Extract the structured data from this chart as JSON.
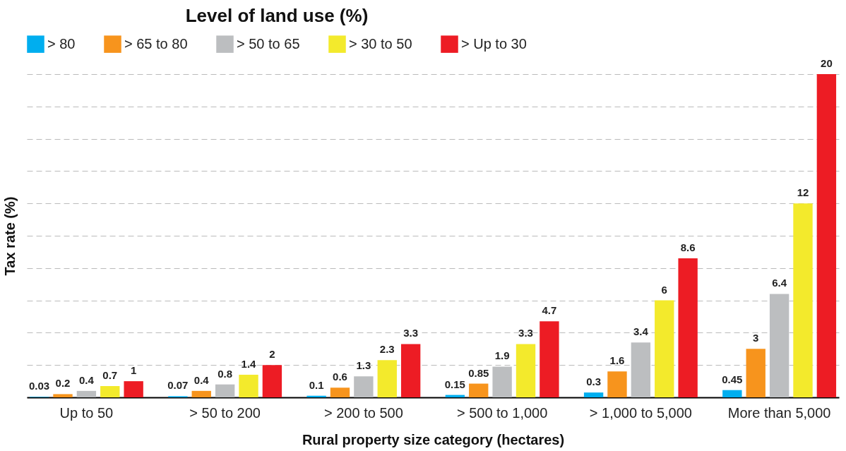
{
  "chart_data": {
    "type": "bar",
    "legend_title": "Level of land use (%)",
    "xlabel": "Rural property size category (hectares)",
    "ylabel": "Tax rate  (%)",
    "categories": [
      "Up to 50",
      "> 50 to 200",
      "> 200 to 500",
      "> 500 to 1,000",
      "> 1,000 to 5,000",
      "More than 5,000"
    ],
    "series": [
      {
        "name": "> 80",
        "color": "#00aeef",
        "values": [
          0.03,
          0.07,
          0.1,
          0.15,
          0.3,
          0.45
        ]
      },
      {
        "name": "> 65 to 80",
        "color": "#f7941d",
        "values": [
          0.2,
          0.4,
          0.6,
          0.85,
          1.6,
          3
        ]
      },
      {
        "name": "> 50 to 65",
        "color": "#bcbec0",
        "values": [
          0.4,
          0.8,
          1.3,
          1.9,
          3.4,
          6.4
        ]
      },
      {
        "name": "> 30 to 50",
        "color": "#f3ea2c",
        "values": [
          0.7,
          1.4,
          2.3,
          3.3,
          6,
          12
        ]
      },
      {
        "name": "> Up to 30",
        "color": "#ed1c24",
        "values": [
          1,
          2,
          3.3,
          4.7,
          8.6,
          20
        ]
      }
    ],
    "ylim": [
      0,
      20
    ],
    "yticks": [
      {
        "value": 0,
        "label": null
      },
      {
        "value": 2,
        "label": null
      },
      {
        "value": 4,
        "label": null
      },
      {
        "value": 6,
        "label": null
      },
      {
        "value": 8,
        "label": null
      },
      {
        "value": 10,
        "label": null
      },
      {
        "value": 12,
        "label": null
      },
      {
        "value": 14,
        "label": null
      },
      {
        "value": 16,
        "label": null
      },
      {
        "value": 18,
        "label": null
      },
      {
        "value": 20,
        "label": null
      }
    ],
    "tick_labels": "x",
    "grid": "y",
    "legend": "top",
    "data_labels": true
  }
}
